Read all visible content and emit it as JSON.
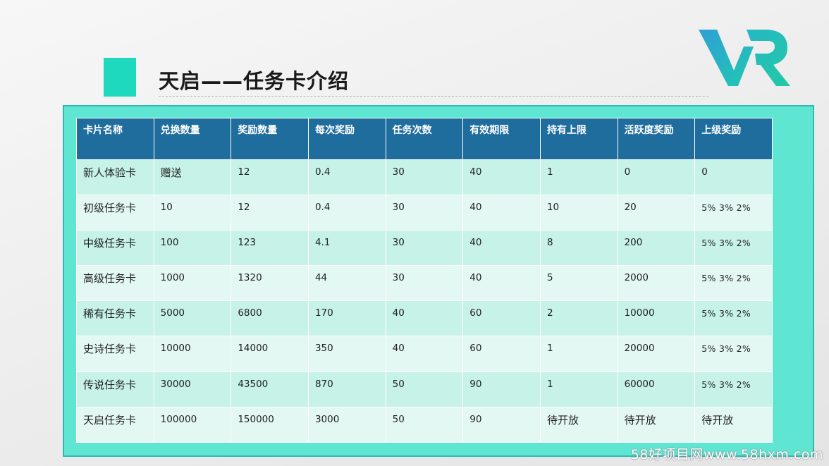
{
  "slide": {
    "title": "天启——任务卡介绍",
    "logo_text": "VR",
    "accent_color": "#1fd9bf",
    "header_color": "#1f6d9d",
    "frame_color": "#5fe6d2"
  },
  "table": {
    "headers": [
      "卡片名称",
      "兑换数量",
      "奖励数量",
      "每次奖励",
      "任务次数",
      "有效期限",
      "持有上限",
      "活跃度奖励",
      "上级奖励"
    ],
    "rows": [
      [
        "新人体验卡",
        "赠送",
        "12",
        "0.4",
        "30",
        "40",
        "1",
        "0",
        "0"
      ],
      [
        "初级任务卡",
        "10",
        "12",
        "0.4",
        "30",
        "40",
        "10",
        "20",
        "5% 3% 2%"
      ],
      [
        "中级任务卡",
        "100",
        "123",
        "4.1",
        "30",
        "40",
        "8",
        "200",
        "5% 3% 2%"
      ],
      [
        "高级任务卡",
        "1000",
        "1320",
        "44",
        "30",
        "40",
        "5",
        "2000",
        "5% 3% 2%"
      ],
      [
        "稀有任务卡",
        "5000",
        "6800",
        "170",
        "40",
        "60",
        "2",
        "10000",
        "5% 3% 2%"
      ],
      [
        "史诗任务卡",
        "10000",
        "14000",
        "350",
        "40",
        "60",
        "1",
        "20000",
        "5% 3% 2%"
      ],
      [
        "传说任务卡",
        "30000",
        "43500",
        "870",
        "50",
        "90",
        "1",
        "60000",
        "5% 3% 2%"
      ],
      [
        "天启任务卡",
        "100000",
        "150000",
        "3000",
        "50",
        "90",
        "待开放",
        "待开放",
        "待开放"
      ]
    ]
  },
  "watermark": "58好项目网www.58hxm.com"
}
